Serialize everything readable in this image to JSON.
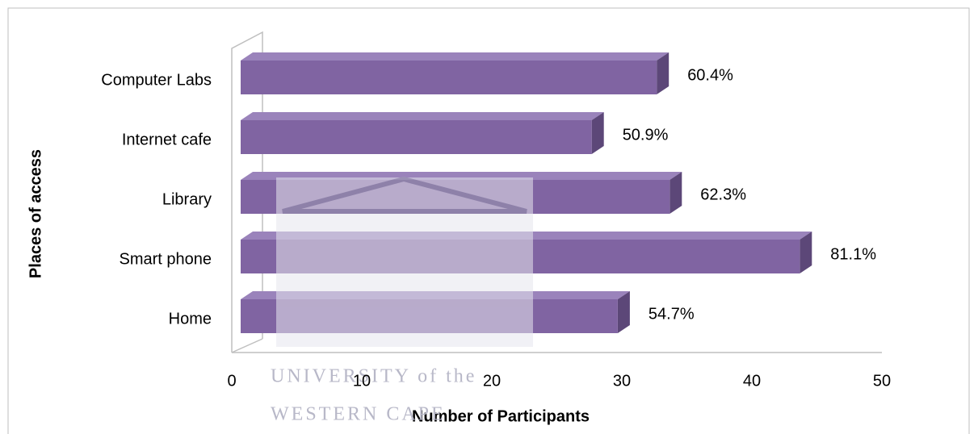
{
  "chart_data": {
    "type": "bar3d_horizontal",
    "x_label": "Number of Participants",
    "y_label": "Places of access",
    "categories": [
      "Computer Labs",
      "Internet cafe",
      "Library",
      "Smart phone",
      "Home"
    ],
    "values": [
      32,
      27,
      33,
      43,
      29
    ],
    "value_labels": [
      "60.4%",
      "50.9%",
      "62.3%",
      "81.1%",
      "54.7%"
    ],
    "color": "#8064a2",
    "xlim": [
      0,
      50
    ],
    "xticks": [
      0,
      10,
      20,
      30,
      40,
      50
    ],
    "watermark": [
      "UNIVERSITY of the",
      "WESTERN CAPE"
    ]
  }
}
